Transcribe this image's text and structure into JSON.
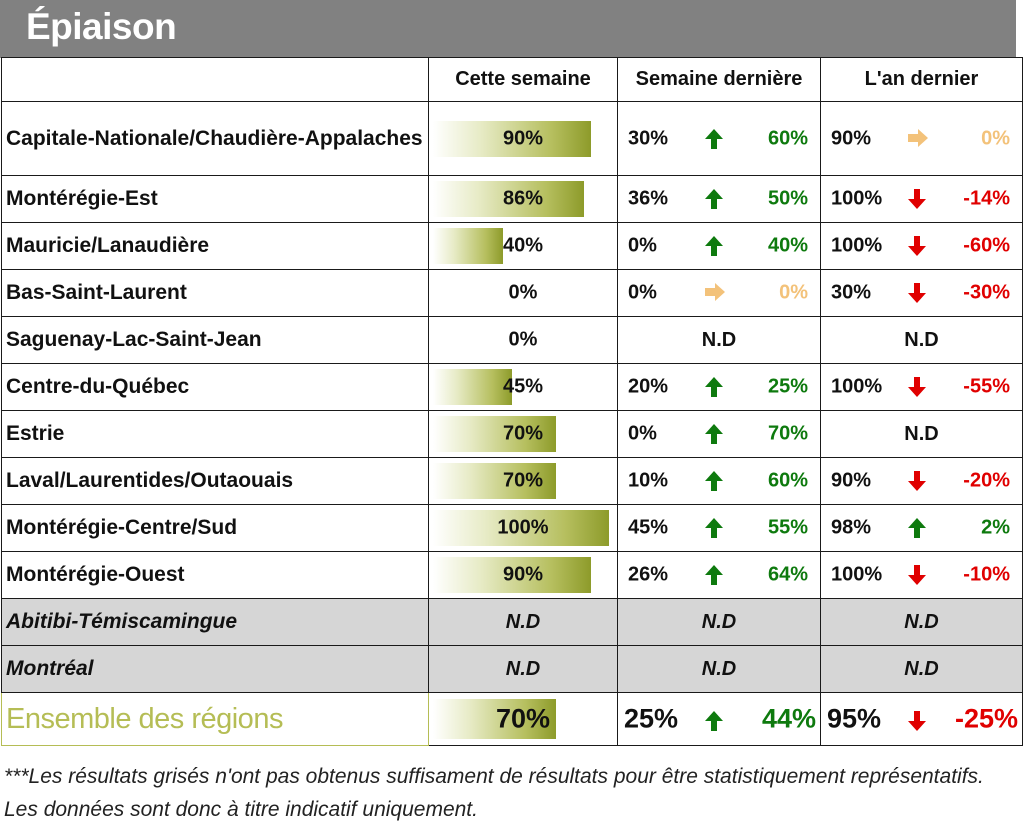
{
  "title": "Épiaison",
  "colors": {
    "up": "#0e7a0e",
    "down": "#e00000",
    "flat": "#f3c27a",
    "bar_end": "#8d9b2a",
    "header_bg": "#818181",
    "gray_row": "#d6d6d6"
  },
  "headers": {
    "col1": "Cette semaine",
    "col2": "Semaine dernière",
    "col3": "L'an dernier"
  },
  "rows": [
    {
      "region": "Capitale-Nationale/Chaudière-Appalaches",
      "this_week": "90%",
      "bar_pct": 90,
      "lw": {
        "val": "30%",
        "trend": "up",
        "delta": "60%"
      },
      "ly": {
        "val": "90%",
        "trend": "flat",
        "delta": "0%"
      }
    },
    {
      "region": "Montérégie-Est",
      "this_week": "86%",
      "bar_pct": 86,
      "lw": {
        "val": "36%",
        "trend": "up",
        "delta": "50%"
      },
      "ly": {
        "val": "100%",
        "trend": "down",
        "delta": "-14%"
      }
    },
    {
      "region": "Mauricie/Lanaudière",
      "this_week": "40%",
      "bar_pct": 40,
      "lw": {
        "val": "0%",
        "trend": "up",
        "delta": "40%"
      },
      "ly": {
        "val": "100%",
        "trend": "down",
        "delta": "-60%"
      }
    },
    {
      "region": "Bas-Saint-Laurent",
      "this_week": "0%",
      "bar_pct": 0,
      "lw": {
        "val": "0%",
        "trend": "flat",
        "delta": "0%"
      },
      "ly": {
        "val": "30%",
        "trend": "down",
        "delta": "-30%"
      }
    },
    {
      "region": "Saguenay-Lac-Saint-Jean",
      "this_week": "0%",
      "bar_pct": 0,
      "lw": {
        "nd": "N.D"
      },
      "ly": {
        "nd": "N.D"
      }
    },
    {
      "region": "Centre-du-Québec",
      "this_week": "45%",
      "bar_pct": 45,
      "lw": {
        "val": "20%",
        "trend": "up",
        "delta": "25%"
      },
      "ly": {
        "val": "100%",
        "trend": "down",
        "delta": "-55%"
      }
    },
    {
      "region": "Estrie",
      "this_week": "70%",
      "bar_pct": 70,
      "lw": {
        "val": "0%",
        "trend": "up",
        "delta": "70%"
      },
      "ly": {
        "nd": "N.D"
      }
    },
    {
      "region": "Laval/Laurentides/Outaouais",
      "this_week": "70%",
      "bar_pct": 70,
      "lw": {
        "val": "10%",
        "trend": "up",
        "delta": "60%"
      },
      "ly": {
        "val": "90%",
        "trend": "down",
        "delta": "-20%"
      }
    },
    {
      "region": "Montérégie-Centre/Sud",
      "this_week": "100%",
      "bar_pct": 100,
      "lw": {
        "val": "45%",
        "trend": "up",
        "delta": "55%"
      },
      "ly": {
        "val": "98%",
        "trend": "up",
        "delta": "2%"
      }
    },
    {
      "region": "Montérégie-Ouest",
      "this_week": "90%",
      "bar_pct": 90,
      "lw": {
        "val": "26%",
        "trend": "up",
        "delta": "64%"
      },
      "ly": {
        "val": "100%",
        "trend": "down",
        "delta": "-10%"
      }
    },
    {
      "region": "Abitibi-Témiscamingue",
      "gray": true,
      "this_week_nd": "N.D",
      "lw": {
        "nd": "N.D"
      },
      "ly": {
        "nd": "N.D"
      }
    },
    {
      "region": "Montréal",
      "gray": true,
      "this_week_nd": "N.D",
      "lw": {
        "nd": "N.D"
      },
      "ly": {
        "nd": "N.D"
      }
    }
  ],
  "total": {
    "region": "Ensemble des régions",
    "this_week": "70%",
    "bar_pct": 70,
    "lw": {
      "val": "25%",
      "trend": "up",
      "delta": "44%"
    },
    "ly": {
      "val": "95%",
      "trend": "down",
      "delta": "-25%"
    }
  },
  "footnote": "***Les résultats grisés n'ont pas obtenus suffisament de résultats pour être statistiquement représentatifs. Les données sont donc à titre indicatif uniquement."
}
